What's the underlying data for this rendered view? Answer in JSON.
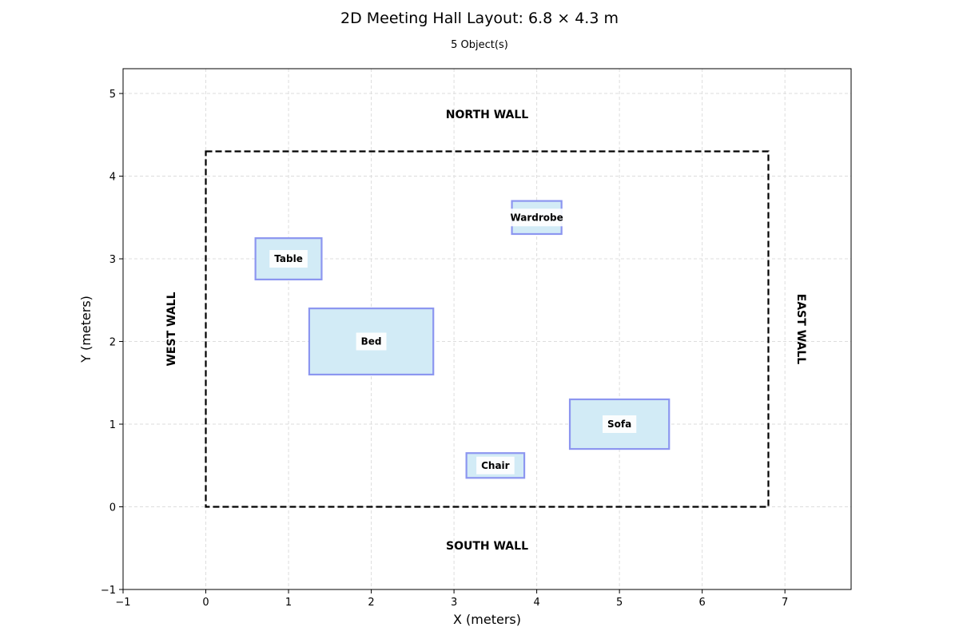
{
  "title": "2D Meeting Hall Layout: 6.8 × 4.3 m",
  "subtitle": "5 Object(s)",
  "chart_data": {
    "type": "floorplan",
    "xlabel": "X (meters)",
    "ylabel": "Y (meters)",
    "xlim": [
      -1,
      7.8
    ],
    "ylim": [
      -1,
      5.3
    ],
    "xticks": [
      -1,
      0,
      1,
      2,
      3,
      4,
      5,
      6,
      7
    ],
    "yticks": [
      -1,
      0,
      1,
      2,
      3,
      4,
      5
    ],
    "grid": true,
    "room": {
      "x": 0,
      "y": 0,
      "width": 6.8,
      "height": 4.3
    },
    "walls": {
      "north": "NORTH WALL",
      "south": "SOUTH WALL",
      "west": "WEST WALL",
      "east": "EAST WALL"
    },
    "objects": [
      {
        "label": "Table",
        "x": 0.6,
        "y": 2.75,
        "width": 0.8,
        "height": 0.5
      },
      {
        "label": "Wardrobe",
        "x": 3.7,
        "y": 3.3,
        "width": 0.6,
        "height": 0.4
      },
      {
        "label": "Bed",
        "x": 1.25,
        "y": 1.6,
        "width": 1.5,
        "height": 0.8
      },
      {
        "label": "Sofa",
        "x": 4.4,
        "y": 0.7,
        "width": 1.2,
        "height": 0.6
      },
      {
        "label": "Chair",
        "x": 3.15,
        "y": 0.35,
        "width": 0.7,
        "height": 0.3
      }
    ],
    "colors": {
      "object_fill": "#d2ebf6",
      "object_edge": "#8c96f0",
      "room_edge": "#000000",
      "grid": "#dddddd"
    }
  }
}
